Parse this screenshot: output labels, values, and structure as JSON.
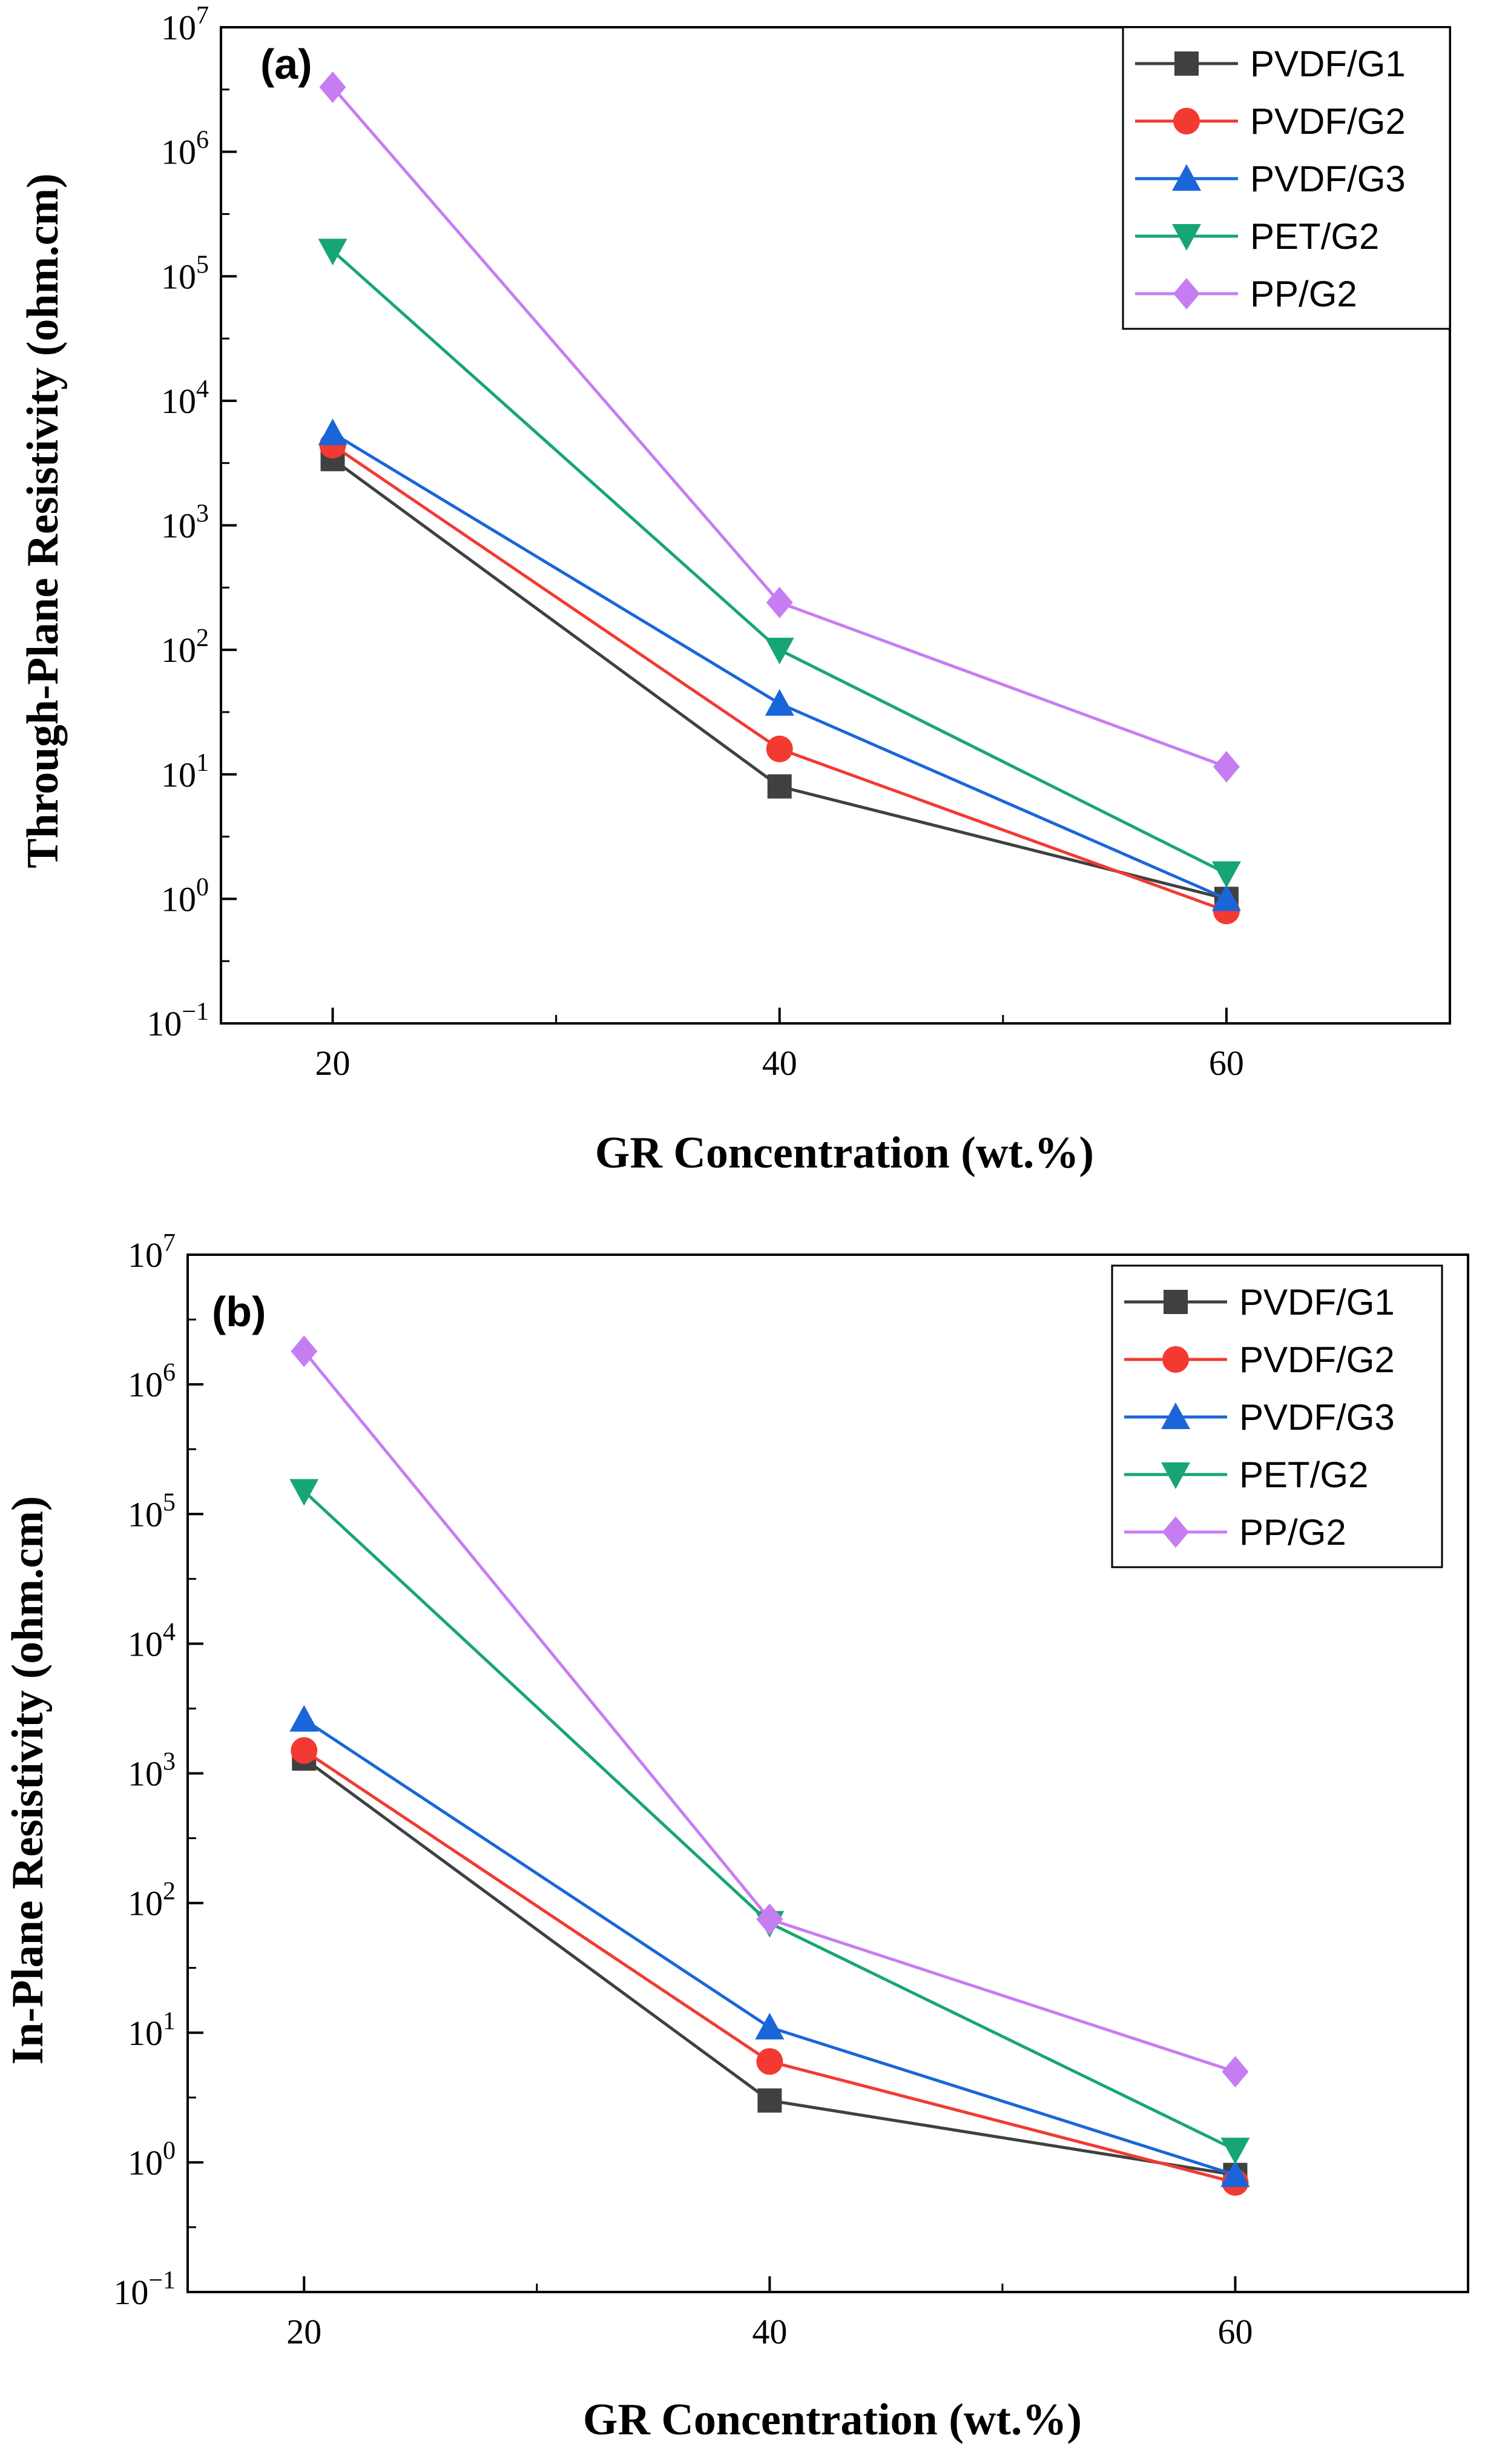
{
  "chart_data": [
    {
      "type": "line",
      "panel_label": "(a)",
      "xlabel": "GR Concentration (wt.%)",
      "ylabel": "Through-Plane Resistivity (ohm.cm)",
      "yscale": "log",
      "xlim": [
        15,
        70
      ],
      "ylim_exp": [
        -1,
        7
      ],
      "x": [
        20,
        40,
        60
      ],
      "x_ticks": [
        "20",
        "40",
        "60"
      ],
      "y_ticks_base": "10",
      "y_ticks_exp": [
        "−1",
        "0",
        "1",
        "2",
        "3",
        "4",
        "5",
        "6",
        "7"
      ],
      "legend_position": "top-right",
      "series": [
        {
          "name": "PVDF/G1",
          "values": [
            3400,
            8,
            1.0
          ]
        },
        {
          "name": "PVDF/G2",
          "values": [
            4400,
            16,
            0.8
          ]
        },
        {
          "name": "PVDF/G3",
          "values": [
            5500,
            37,
            1.0
          ]
        },
        {
          "name": "PET/G2",
          "values": [
            160000,
            100,
            1.6
          ]
        },
        {
          "name": "PP/G2",
          "values": [
            3300000,
            240,
            11.5
          ]
        }
      ]
    },
    {
      "type": "line",
      "panel_label": "(b)",
      "xlabel": "GR Concentration (wt.%)",
      "ylabel": "In-Plane Resistivity (ohm.cm)",
      "yscale": "log",
      "xlim": [
        15,
        70
      ],
      "ylim_exp": [
        -1,
        7
      ],
      "x": [
        20,
        40,
        60
      ],
      "x_ticks": [
        "20",
        "40",
        "60"
      ],
      "y_ticks_base": "10",
      "y_ticks_exp": [
        "−1",
        "0",
        "1",
        "2",
        "3",
        "4",
        "5",
        "6",
        "7"
      ],
      "legend_position": "top-right",
      "series": [
        {
          "name": "PVDF/G1",
          "values": [
            1300,
            3,
            0.8
          ]
        },
        {
          "name": "PVDF/G2",
          "values": [
            1500,
            6,
            0.7
          ]
        },
        {
          "name": "PVDF/G3",
          "values": [
            2600,
            11,
            0.8
          ]
        },
        {
          "name": "PET/G2",
          "values": [
            150000,
            70,
            1.25
          ]
        },
        {
          "name": "PP/G2",
          "values": [
            1800000,
            75,
            5.0
          ]
        }
      ]
    }
  ],
  "series_style": [
    {
      "name": "PVDF/G1",
      "color": "#404040",
      "marker": "square"
    },
    {
      "name": "PVDF/G2",
      "color": "#f23a33",
      "marker": "circle"
    },
    {
      "name": "PVDF/G3",
      "color": "#1a66d9",
      "marker": "triangle-up"
    },
    {
      "name": "PET/G2",
      "color": "#17a673",
      "marker": "triangle-down"
    },
    {
      "name": "PP/G2",
      "color": "#c77df2",
      "marker": "diamond"
    }
  ]
}
